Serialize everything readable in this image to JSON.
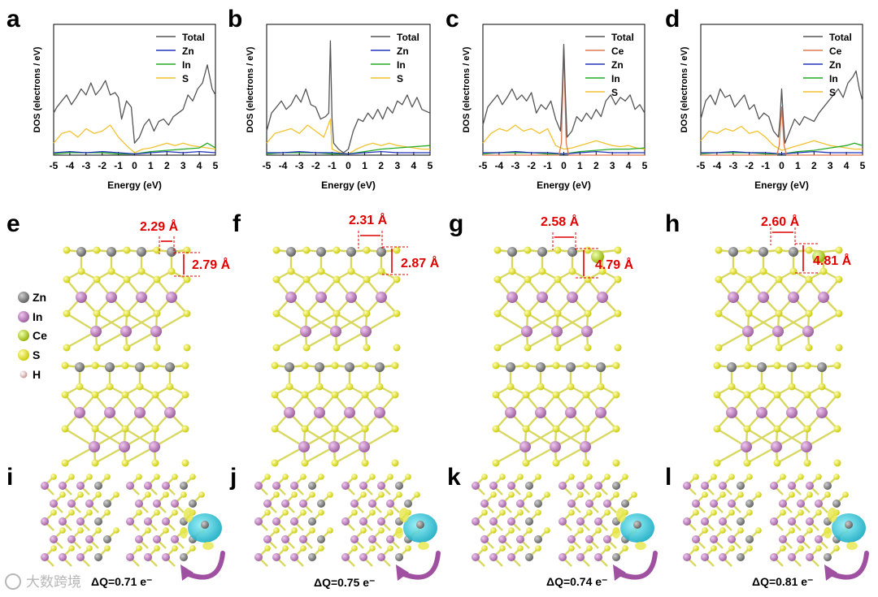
{
  "figure": {
    "panel_letters": [
      "a",
      "b",
      "c",
      "d",
      "e",
      "f",
      "g",
      "h",
      "i",
      "j",
      "k",
      "l"
    ],
    "watermark": "大数跨境",
    "colors": {
      "total": "#555555",
      "zn": "#2233bb",
      "in": "#22aa22",
      "s": "#f2c230",
      "ce": "#e07850",
      "annotation": "#e00000",
      "atom_zn": "#7a7a7a",
      "atom_in": "#bb77bb",
      "atom_s": "#e8e82a",
      "atom_ce": "#c8e040",
      "charge_cyan": "#20c8d8",
      "charge_yellow": "#e6e64a",
      "arrow": "#a050a0"
    }
  },
  "chart_data": [
    {
      "type": "line",
      "panel": "a",
      "xlabel": "Energy (eV)",
      "ylabel": "DOS (electrons / eV)",
      "xlim": [
        -5,
        5
      ],
      "xticks": [
        "-5",
        "-4",
        "-3",
        "-2",
        "-1",
        "0",
        "1",
        "2",
        "3",
        "4",
        "5"
      ],
      "legend": [
        "Total",
        "Zn",
        "In",
        "S"
      ],
      "series": [
        {
          "name": "Total",
          "x": [
            -5,
            -4.8,
            -4.5,
            -4.2,
            -3.9,
            -3.6,
            -3.3,
            -3,
            -2.7,
            -2.4,
            -2.1,
            -1.8,
            -1.5,
            -1.2,
            -1,
            -0.8,
            -0.5,
            -0.2,
            0,
            0.3,
            0.6,
            0.9,
            1.2,
            1.5,
            1.8,
            2.1,
            2.4,
            2.7,
            3,
            3.3,
            3.6,
            3.9,
            4.2,
            4.5,
            4.8,
            5
          ],
          "y": [
            0.35,
            0.4,
            0.45,
            0.5,
            0.42,
            0.48,
            0.55,
            0.5,
            0.6,
            0.5,
            0.55,
            0.62,
            0.5,
            0.52,
            0.48,
            0.3,
            0.45,
            0.4,
            0.1,
            0.15,
            0.25,
            0.3,
            0.2,
            0.28,
            0.3,
            0.25,
            0.32,
            0.35,
            0.38,
            0.5,
            0.45,
            0.55,
            0.6,
            0.75,
            0.55,
            0.5
          ]
        },
        {
          "name": "Zn",
          "x": [
            -5,
            -4,
            -3,
            -2,
            -1,
            0,
            1,
            2,
            3,
            4,
            5
          ],
          "y": [
            0.02,
            0.03,
            0.02,
            0.03,
            0.02,
            0.01,
            0.02,
            0.03,
            0.02,
            0.03,
            0.02
          ]
        },
        {
          "name": "In",
          "x": [
            -5,
            -4,
            -3,
            -2,
            -1,
            0,
            1,
            2,
            3,
            4,
            4.5,
            5
          ],
          "y": [
            0.01,
            0.02,
            0.02,
            0.02,
            0.01,
            0.01,
            0.03,
            0.04,
            0.05,
            0.06,
            0.1,
            0.06
          ]
        },
        {
          "name": "S",
          "x": [
            -5,
            -4.5,
            -4,
            -3.5,
            -3,
            -2.5,
            -2,
            -1.5,
            -1,
            -0.5,
            0,
            0.5,
            1,
            1.5,
            2,
            2.5,
            3,
            3.5,
            4,
            4.5,
            5
          ],
          "y": [
            0.1,
            0.18,
            0.2,
            0.15,
            0.22,
            0.18,
            0.2,
            0.25,
            0.15,
            0.08,
            0.02,
            0.05,
            0.06,
            0.08,
            0.1,
            0.08,
            0.1,
            0.08,
            0.07,
            0.06,
            0.05
          ]
        }
      ]
    },
    {
      "type": "line",
      "panel": "b",
      "xlabel": "Energy (eV)",
      "ylabel": "DOS (electrons / eV)",
      "xlim": [
        -5,
        5
      ],
      "xticks": [
        "-5",
        "-4",
        "-3",
        "-2",
        "-1",
        "0",
        "1",
        "2",
        "3",
        "4",
        "5"
      ],
      "legend": [
        "Total",
        "Zn",
        "In",
        "S"
      ],
      "series": [
        {
          "name": "Total",
          "x": [
            -5,
            -4.7,
            -4.4,
            -4.1,
            -3.8,
            -3.5,
            -3.2,
            -2.9,
            -2.6,
            -2.3,
            -2,
            -1.7,
            -1.4,
            -1.2,
            -1.1,
            -1,
            -0.9,
            -0.6,
            -0.3,
            0,
            0.3,
            0.6,
            0.9,
            1.2,
            1.5,
            1.8,
            2.1,
            2.4,
            2.7,
            3,
            3.3,
            3.6,
            3.9,
            4.2,
            4.5,
            5
          ],
          "y": [
            0.2,
            0.35,
            0.4,
            0.45,
            0.38,
            0.42,
            0.5,
            0.44,
            0.55,
            0.42,
            0.4,
            0.3,
            0.32,
            0.35,
            0.95,
            0.3,
            0.1,
            0.05,
            0.02,
            0.05,
            0.2,
            0.3,
            0.28,
            0.35,
            0.3,
            0.38,
            0.3,
            0.4,
            0.35,
            0.45,
            0.42,
            0.5,
            0.4,
            0.48,
            0.38,
            0.35
          ]
        },
        {
          "name": "Zn",
          "x": [
            -5,
            -4,
            -3,
            -2,
            -1,
            0,
            1,
            2,
            3,
            4,
            5
          ],
          "y": [
            0.02,
            0.02,
            0.03,
            0.02,
            0.02,
            0.01,
            0.02,
            0.03,
            0.02,
            0.02,
            0.02
          ]
        },
        {
          "name": "In",
          "x": [
            -5,
            -4,
            -3,
            -2,
            -1,
            0,
            1,
            2,
            3,
            4,
            5
          ],
          "y": [
            0.01,
            0.02,
            0.02,
            0.02,
            0.01,
            0.01,
            0.03,
            0.05,
            0.06,
            0.07,
            0.08
          ]
        },
        {
          "name": "S",
          "x": [
            -5,
            -4.5,
            -4,
            -3.5,
            -3,
            -2.5,
            -2,
            -1.5,
            -1.1,
            -1,
            -0.5,
            0,
            0.5,
            1,
            1.5,
            2,
            2.5,
            3,
            3.5,
            4,
            4.5,
            5
          ],
          "y": [
            0.1,
            0.18,
            0.2,
            0.22,
            0.18,
            0.25,
            0.2,
            0.15,
            0.3,
            0.05,
            0.02,
            0.01,
            0.05,
            0.08,
            0.1,
            0.08,
            0.1,
            0.08,
            0.07,
            0.06,
            0.05,
            0.05
          ]
        }
      ]
    },
    {
      "type": "line",
      "panel": "c",
      "xlabel": "Energy (eV)",
      "ylabel": "DOS (electrons / eV)",
      "xlim": [
        -5,
        5
      ],
      "xticks": [
        "-5",
        "-4",
        "-3",
        "-2",
        "-1",
        "0",
        "1",
        "2",
        "3",
        "4",
        "5"
      ],
      "legend": [
        "Total",
        "Ce",
        "Zn",
        "In",
        "S"
      ],
      "series": [
        {
          "name": "Total",
          "x": [
            -5,
            -4.7,
            -4.4,
            -4.1,
            -3.8,
            -3.5,
            -3.2,
            -2.9,
            -2.6,
            -2.3,
            -2,
            -1.7,
            -1.4,
            -1.1,
            -0.8,
            -0.5,
            -0.2,
            -0.1,
            0,
            0.1,
            0.2,
            0.5,
            0.8,
            1.1,
            1.4,
            1.7,
            2,
            2.3,
            2.6,
            2.9,
            3.2,
            3.5,
            3.8,
            4.1,
            4.4,
            4.7,
            5
          ],
          "y": [
            0.25,
            0.4,
            0.45,
            0.5,
            0.42,
            0.48,
            0.55,
            0.46,
            0.5,
            0.45,
            0.52,
            0.35,
            0.42,
            0.38,
            0.45,
            0.3,
            0.2,
            0.5,
            0.92,
            0.5,
            0.15,
            0.2,
            0.32,
            0.28,
            0.35,
            0.3,
            0.38,
            0.32,
            0.45,
            0.5,
            0.42,
            0.48,
            0.45,
            0.5,
            0.38,
            0.42,
            0.35
          ]
        },
        {
          "name": "Ce",
          "x": [
            -5,
            -0.3,
            -0.15,
            0,
            0.15,
            0.3,
            5
          ],
          "y": [
            0,
            0,
            0.1,
            0.88,
            0.1,
            0,
            0
          ]
        },
        {
          "name": "Zn",
          "x": [
            -5,
            -4,
            -3,
            -2,
            -1,
            0,
            1,
            2,
            3,
            4,
            5
          ],
          "y": [
            0.02,
            0.02,
            0.03,
            0.02,
            0.02,
            0.01,
            0.02,
            0.03,
            0.02,
            0.02,
            0.02
          ]
        },
        {
          "name": "In",
          "x": [
            -5,
            -4,
            -3,
            -2,
            -1,
            0,
            1,
            2,
            3,
            4,
            5
          ],
          "y": [
            0.01,
            0.02,
            0.02,
            0.02,
            0.01,
            0.01,
            0.03,
            0.04,
            0.05,
            0.05,
            0.06
          ]
        },
        {
          "name": "S",
          "x": [
            -5,
            -4.5,
            -4,
            -3.5,
            -3,
            -2.5,
            -2,
            -1.5,
            -1,
            -0.5,
            0,
            0.5,
            1,
            1.5,
            2,
            2.5,
            3,
            3.5,
            4,
            4.5,
            5
          ],
          "y": [
            0.1,
            0.18,
            0.22,
            0.2,
            0.25,
            0.2,
            0.22,
            0.18,
            0.22,
            0.08,
            0.05,
            0.06,
            0.08,
            0.1,
            0.12,
            0.1,
            0.08,
            0.07,
            0.08,
            0.06,
            0.05
          ]
        }
      ]
    },
    {
      "type": "line",
      "panel": "d",
      "xlabel": "Energy (eV)",
      "ylabel": "DOS (electrons / eV)",
      "xlim": [
        -5,
        5
      ],
      "xticks": [
        "-5",
        "-4",
        "-3",
        "-2",
        "-1",
        "0",
        "1",
        "2",
        "3",
        "4",
        "5"
      ],
      "legend": [
        "Total",
        "Ce",
        "Zn",
        "In",
        "S"
      ],
      "series": [
        {
          "name": "Total",
          "x": [
            -5,
            -4.7,
            -4.4,
            -4.1,
            -3.8,
            -3.5,
            -3.2,
            -2.9,
            -2.6,
            -2.3,
            -2,
            -1.7,
            -1.4,
            -1.1,
            -0.8,
            -0.5,
            -0.2,
            -0.1,
            0,
            0.1,
            0.2,
            0.5,
            0.8,
            1.1,
            1.4,
            1.7,
            2,
            2.3,
            2.6,
            2.9,
            3.2,
            3.5,
            3.8,
            4.1,
            4.4,
            4.6,
            4.8,
            5
          ],
          "y": [
            0.3,
            0.45,
            0.5,
            0.42,
            0.55,
            0.48,
            0.5,
            0.4,
            0.45,
            0.5,
            0.38,
            0.42,
            0.3,
            0.35,
            0.32,
            0.2,
            0.15,
            0.3,
            0.55,
            0.3,
            0.1,
            0.2,
            0.3,
            0.25,
            0.32,
            0.3,
            0.28,
            0.35,
            0.4,
            0.45,
            0.5,
            0.55,
            0.48,
            0.6,
            0.65,
            0.7,
            0.55,
            0.45
          ]
        },
        {
          "name": "Ce",
          "x": [
            -5,
            -0.3,
            -0.15,
            0,
            0.15,
            0.3,
            5
          ],
          "y": [
            0,
            0,
            0.08,
            0.4,
            0.08,
            0,
            0
          ]
        },
        {
          "name": "Zn",
          "x": [
            -5,
            -4,
            -3,
            -2,
            -1,
            0,
            1,
            2,
            3,
            4,
            5
          ],
          "y": [
            0.02,
            0.02,
            0.03,
            0.02,
            0.02,
            0.01,
            0.02,
            0.03,
            0.02,
            0.02,
            0.02
          ]
        },
        {
          "name": "In",
          "x": [
            -5,
            -4,
            -3,
            -2,
            -1,
            0,
            1,
            2,
            3,
            4,
            4.5,
            5
          ],
          "y": [
            0.01,
            0.02,
            0.02,
            0.02,
            0.01,
            0.01,
            0.03,
            0.04,
            0.06,
            0.08,
            0.1,
            0.08
          ]
        },
        {
          "name": "S",
          "x": [
            -5,
            -4.5,
            -4,
            -3.5,
            -3,
            -2.5,
            -2,
            -1.5,
            -1,
            -0.5,
            0,
            0.5,
            1,
            1.5,
            2,
            2.5,
            3,
            3.5,
            4,
            4.5,
            5
          ],
          "y": [
            0.12,
            0.2,
            0.18,
            0.22,
            0.2,
            0.24,
            0.18,
            0.2,
            0.15,
            0.08,
            0.04,
            0.06,
            0.08,
            0.1,
            0.12,
            0.1,
            0.08,
            0.07,
            0.06,
            0.05,
            0.05
          ]
        }
      ]
    }
  ],
  "structures": {
    "legend": [
      "Zn",
      "In",
      "Ce",
      "S",
      "H"
    ],
    "panels": [
      {
        "panel": "e",
        "distance_1": "2.29 Å",
        "distance_2": "2.79 Å",
        "dopant": "none"
      },
      {
        "panel": "f",
        "distance_1": "2.31 Å",
        "distance_2": "2.87 Å",
        "dopant": "none"
      },
      {
        "panel": "g",
        "distance_1": "2.58 Å",
        "distance_2": "4.79 Å",
        "dopant": "Ce"
      },
      {
        "panel": "h",
        "distance_1": "2.60 Å",
        "distance_2": "4.81 Å",
        "dopant": "Ce"
      }
    ]
  },
  "charge": {
    "panels": [
      {
        "panel": "i",
        "label": "ΔQ=0.71 e⁻"
      },
      {
        "panel": "j",
        "label": "ΔQ=0.75 e⁻"
      },
      {
        "panel": "k",
        "label": "ΔQ=0.74 e⁻"
      },
      {
        "panel": "l",
        "label": "ΔQ=0.81 e⁻"
      }
    ]
  }
}
